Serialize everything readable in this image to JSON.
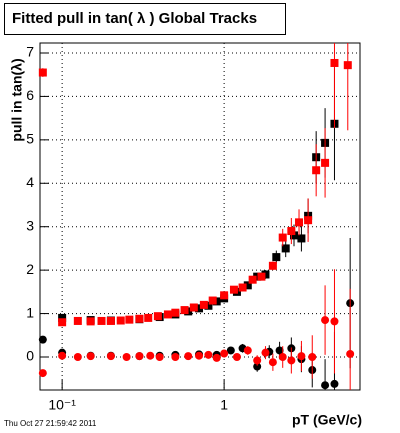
{
  "chart_data": {
    "type": "scatter",
    "title": "Fitted pull in tan( λ )  Global Tracks",
    "xlabel": "pT (GeV/c)",
    "ylabel": "pull in tan(λ)",
    "timestamp": "Thu Oct 27 21:59:42 2011",
    "xscale": "log",
    "xlim": [
      0.073,
      6.9
    ],
    "ylim": [
      -0.76,
      7.23
    ],
    "xticks": [
      {
        "value": 0.1,
        "label": "10⁻¹"
      },
      1
    ],
    "yticks": [
      0,
      1,
      2,
      3,
      4,
      5,
      6,
      7
    ],
    "grid": true,
    "series": [
      {
        "color": "#000000",
        "marker": "square",
        "x": [
          0.1,
          0.15,
          0.2,
          0.3,
          0.4,
          0.5,
          0.6,
          0.7,
          0.8,
          0.9,
          1.0,
          1.2,
          1.4,
          1.6,
          1.8,
          2.1,
          2.4,
          2.7,
          3.0,
          3.3,
          3.7,
          4.2,
          4.8
        ],
        "values": [
          0.9,
          0.85,
          0.84,
          0.87,
          0.92,
          0.98,
          1.05,
          1.12,
          1.18,
          1.28,
          1.35,
          1.5,
          1.65,
          1.85,
          1.9,
          2.3,
          2.5,
          2.8,
          2.73,
          3.25,
          4.6,
          4.93,
          5.37
        ],
        "errors": [
          0.05,
          0.03,
          0.03,
          0.03,
          0.03,
          0.03,
          0.03,
          0.03,
          0.03,
          0.04,
          0.04,
          0.05,
          0.06,
          0.08,
          0.1,
          0.15,
          0.2,
          0.25,
          0.3,
          0.4,
          0.6,
          0.8,
          1.3
        ]
      },
      {
        "color": "#ff0000",
        "marker": "square",
        "x": [
          0.076,
          0.1,
          0.125,
          0.15,
          0.175,
          0.2,
          0.23,
          0.26,
          0.3,
          0.34,
          0.39,
          0.45,
          0.5,
          0.57,
          0.65,
          0.75,
          0.85,
          1.0,
          1.15,
          1.3,
          1.5,
          1.7,
          2.0,
          2.3,
          2.6,
          2.9,
          3.3,
          3.7,
          4.2,
          4.8,
          5.8
        ],
        "values": [
          6.55,
          0.8,
          0.83,
          0.82,
          0.83,
          0.83,
          0.84,
          0.86,
          0.88,
          0.9,
          0.94,
          0.98,
          1.02,
          1.08,
          1.14,
          1.2,
          1.3,
          1.42,
          1.55,
          1.6,
          1.78,
          1.85,
          2.1,
          2.75,
          2.9,
          3.1,
          3.15,
          4.3,
          4.47,
          6.77,
          6.72
        ],
        "errors": [
          0.1,
          0.05,
          0.03,
          0.03,
          0.03,
          0.03,
          0.03,
          0.03,
          0.03,
          0.03,
          0.03,
          0.03,
          0.03,
          0.03,
          0.03,
          0.03,
          0.04,
          0.04,
          0.05,
          0.06,
          0.07,
          0.08,
          0.1,
          0.2,
          0.3,
          0.3,
          0.5,
          0.6,
          0.8,
          1.5,
          1.5
        ]
      },
      {
        "color": "#000000",
        "marker": "circle",
        "x": [
          0.076,
          0.1,
          0.15,
          0.2,
          0.3,
          0.4,
          0.5,
          0.7,
          0.9,
          1.1,
          1.3,
          1.6,
          1.9,
          2.2,
          2.6,
          3.0,
          3.5,
          4.2,
          4.8,
          6.0
        ],
        "values": [
          0.4,
          0.1,
          0.03,
          0.03,
          0.02,
          0.03,
          0.05,
          0.06,
          0.05,
          0.15,
          0.2,
          -0.22,
          0.12,
          0.15,
          0.2,
          -0.05,
          -0.3,
          -0.65,
          -0.62,
          1.24
        ],
        "errors": [
          0.05,
          0.04,
          0.03,
          0.03,
          0.03,
          0.03,
          0.03,
          0.04,
          0.05,
          0.08,
          0.1,
          0.12,
          0.15,
          0.2,
          0.25,
          0.3,
          0.4,
          0.6,
          1.2,
          1.5
        ]
      },
      {
        "color": "#ff0000",
        "marker": "circle",
        "x": [
          0.076,
          0.1,
          0.125,
          0.15,
          0.2,
          0.25,
          0.3,
          0.35,
          0.4,
          0.5,
          0.6,
          0.7,
          0.8,
          0.9,
          1.0,
          1.2,
          1.4,
          1.6,
          1.8,
          2.0,
          2.3,
          2.6,
          3.0,
          3.5,
          4.2,
          4.8,
          6.0
        ],
        "values": [
          -0.37,
          0.03,
          0.0,
          0.02,
          0.02,
          0.0,
          0.02,
          0.03,
          0.0,
          0.0,
          0.02,
          0.03,
          0.05,
          -0.02,
          0.08,
          0.0,
          0.15,
          -0.08,
          0.1,
          -0.12,
          0.0,
          -0.08,
          0.02,
          0.0,
          0.85,
          0.82,
          0.07
        ],
        "errors": [
          0.06,
          0.04,
          0.03,
          0.03,
          0.03,
          0.03,
          0.03,
          0.03,
          0.03,
          0.03,
          0.03,
          0.03,
          0.04,
          0.05,
          0.06,
          0.08,
          0.1,
          0.12,
          0.15,
          0.2,
          0.25,
          0.3,
          0.35,
          0.5,
          0.8,
          1.2,
          1.5
        ]
      }
    ]
  }
}
